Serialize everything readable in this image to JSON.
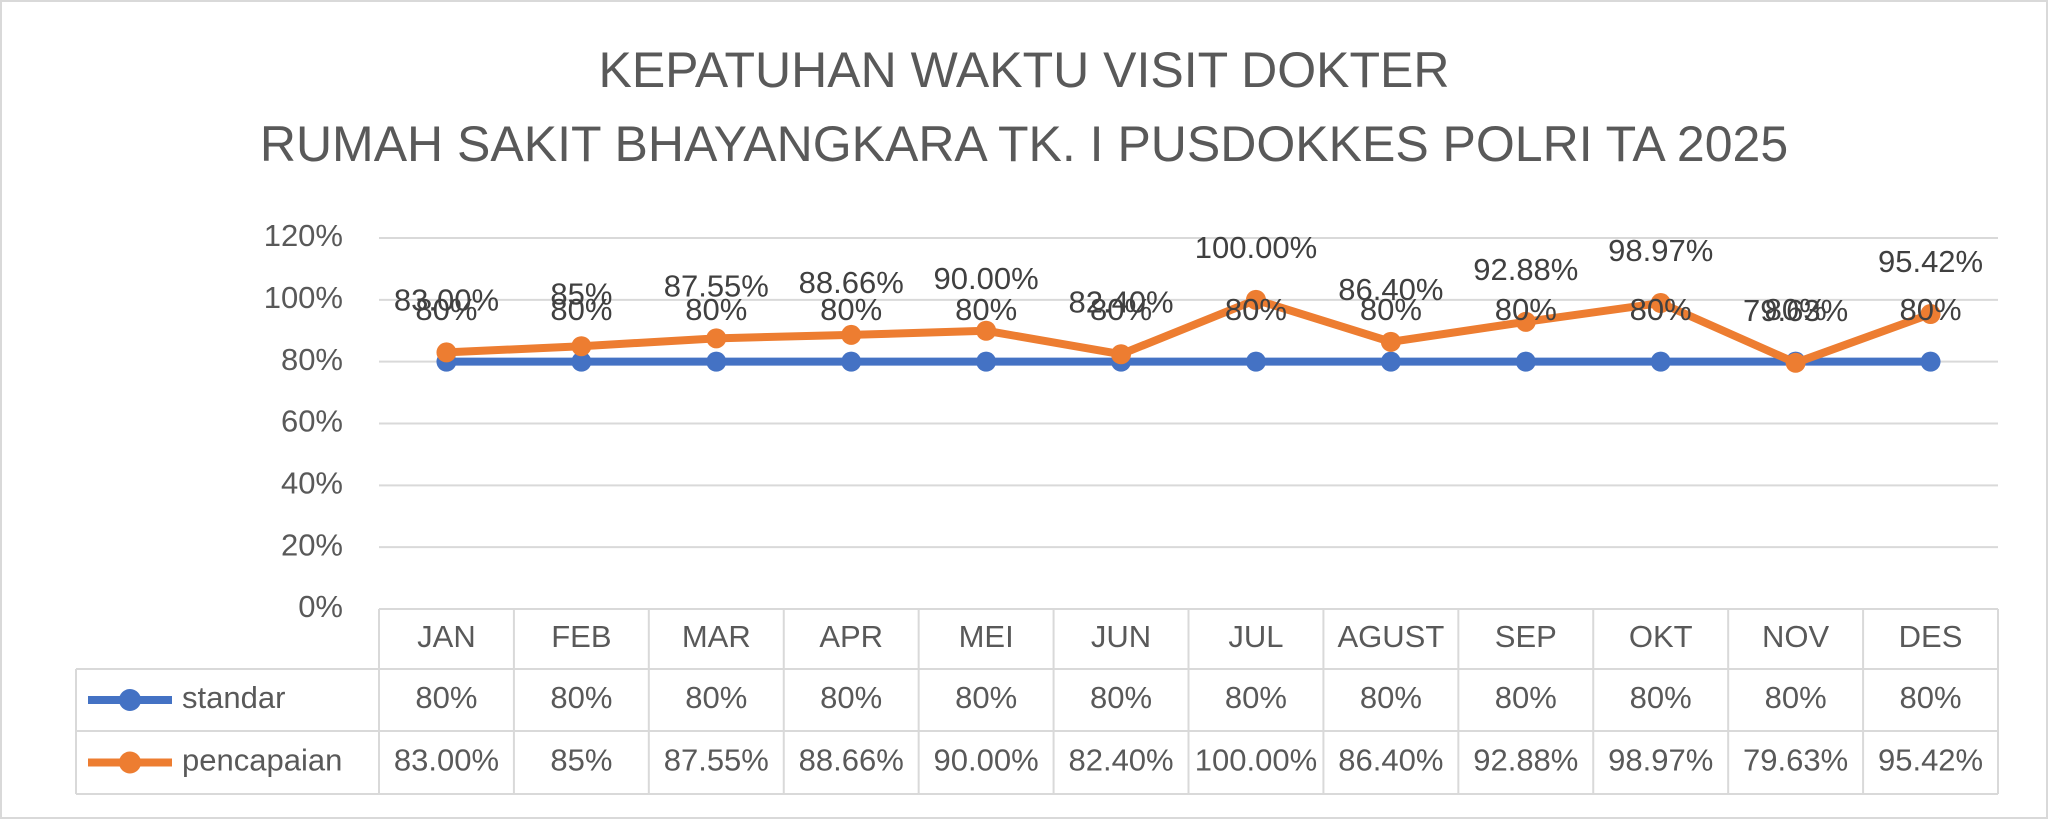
{
  "chart_data": {
    "type": "line",
    "title": "KEPATUHAN WAKTU VISIT DOKTER",
    "subtitle": "RUMAH SAKIT BHAYANGKARA TK. I PUSDOKKES POLRI TA 2025",
    "categories": [
      "JAN",
      "FEB",
      "MAR",
      "APR",
      "MEI",
      "JUN",
      "JUL",
      "AGUST",
      "SEP",
      "OKT",
      "NOV",
      "DES"
    ],
    "series": [
      {
        "name": "standar",
        "color": "#4472c4",
        "values": [
          80,
          80,
          80,
          80,
          80,
          80,
          80,
          80,
          80,
          80,
          80,
          80
        ],
        "value_labels": [
          "80%",
          "80%",
          "80%",
          "80%",
          "80%",
          "80%",
          "80%",
          "80%",
          "80%",
          "80%",
          "80%",
          "80%"
        ]
      },
      {
        "name": "pencapaian",
        "color": "#ed7d31",
        "values": [
          83,
          85,
          87.55,
          88.66,
          90,
          82.4,
          100,
          86.4,
          92.88,
          98.97,
          79.63,
          95.42
        ],
        "value_labels": [
          "83.00%",
          "85%",
          "87.55%",
          "88.66%",
          "90.00%",
          "82.40%",
          "100.00%",
          "86.40%",
          "92.88%",
          "98.97%",
          "79.63%",
          "95.42%"
        ]
      }
    ],
    "ylim": [
      0,
      120
    ],
    "yticks": [
      {
        "value": 0,
        "label": "0%"
      },
      {
        "value": 20,
        "label": "20%"
      },
      {
        "value": 40,
        "label": "40%"
      },
      {
        "value": 60,
        "label": "60%"
      },
      {
        "value": 80,
        "label": "80%"
      },
      {
        "value": 100,
        "label": "100%"
      },
      {
        "value": 120,
        "label": "120%"
      }
    ],
    "grid": true,
    "legend": "data-table"
  }
}
